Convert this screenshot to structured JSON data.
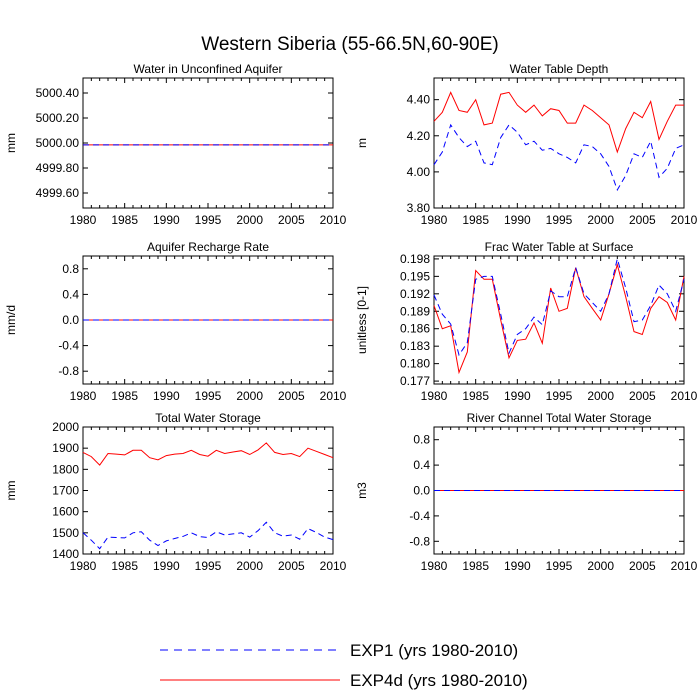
{
  "figure": {
    "title": "Western Siberia (55-66.5N,60-90E)"
  },
  "legend": {
    "items": [
      {
        "label": "EXP1 (yrs 1980-2010)",
        "color": "#0000ff",
        "dash": true
      },
      {
        "label": "EXP4d (yrs 1980-2010)",
        "color": "#ff0000",
        "dash": false
      }
    ]
  },
  "chart_data": [
    {
      "type": "line",
      "title": "Water in Unconfined Aquifer",
      "ylabel": "mm",
      "xlim": [
        1980,
        2010
      ],
      "ylim": [
        4999.48,
        5000.52
      ],
      "xticks": [
        1980,
        1985,
        1990,
        1995,
        2000,
        2005,
        2010
      ],
      "xticklabels": [
        "1980",
        "1985",
        "1990",
        "1995",
        "2000",
        "2005",
        "2010"
      ],
      "yticks": [
        4999.6,
        4999.8,
        5000.0,
        5000.2,
        5000.4
      ],
      "yticklabels": [
        "4999.60",
        "4999.80",
        "5000.00",
        "5000.20",
        "5000.40"
      ],
      "x": [
        1980,
        2010
      ],
      "series": [
        {
          "name": "EXP1",
          "values": [
            4999.985,
            4999.985
          ]
        },
        {
          "name": "EXP4d",
          "values": [
            4999.985,
            4999.985
          ]
        }
      ]
    },
    {
      "type": "line",
      "title": "Water Table Depth",
      "ylabel": "m",
      "xlim": [
        1980,
        2010
      ],
      "ylim": [
        3.8,
        4.52
      ],
      "xticks": [
        1980,
        1985,
        1990,
        1995,
        2000,
        2005,
        2010
      ],
      "xticklabels": [
        "1980",
        "1985",
        "1990",
        "1995",
        "2000",
        "2005",
        "2010"
      ],
      "yticks": [
        3.8,
        4.0,
        4.2,
        4.4
      ],
      "yticklabels": [
        "3.80",
        "4.00",
        "4.20",
        "4.40"
      ],
      "x": [
        1980,
        1981,
        1982,
        1983,
        1984,
        1985,
        1986,
        1987,
        1988,
        1989,
        1990,
        1991,
        1992,
        1993,
        1994,
        1995,
        1996,
        1997,
        1998,
        1999,
        2000,
        2001,
        2002,
        2003,
        2004,
        2005,
        2006,
        2007,
        2008,
        2009,
        2010
      ],
      "series": [
        {
          "name": "EXP1",
          "values": [
            4.04,
            4.11,
            4.26,
            4.19,
            4.14,
            4.17,
            4.05,
            4.04,
            4.19,
            4.26,
            4.22,
            4.15,
            4.17,
            4.12,
            4.13,
            4.1,
            4.08,
            4.05,
            4.15,
            4.14,
            4.1,
            4.03,
            3.9,
            3.98,
            4.1,
            4.08,
            4.17,
            3.97,
            4.02,
            4.13,
            4.15
          ]
        },
        {
          "name": "EXP4d",
          "values": [
            4.28,
            4.33,
            4.44,
            4.34,
            4.33,
            4.4,
            4.26,
            4.27,
            4.43,
            4.44,
            4.37,
            4.33,
            4.37,
            4.31,
            4.35,
            4.34,
            4.27,
            4.27,
            4.37,
            4.34,
            4.3,
            4.26,
            4.11,
            4.24,
            4.33,
            4.3,
            4.39,
            4.18,
            4.28,
            4.37,
            4.37
          ]
        }
      ]
    },
    {
      "type": "line",
      "title": "Aquifer Recharge Rate",
      "ylabel": "mm/d",
      "xlim": [
        1980,
        2010
      ],
      "ylim": [
        -1.0,
        1.0
      ],
      "xticks": [
        1980,
        1985,
        1990,
        1995,
        2000,
        2005,
        2010
      ],
      "xticklabels": [
        "1980",
        "1985",
        "1990",
        "1995",
        "2000",
        "2005",
        "2010"
      ],
      "yticks": [
        -0.8,
        -0.4,
        0.0,
        0.4,
        0.8
      ],
      "yticklabels": [
        "-0.8",
        "-0.4",
        "0.0",
        "0.4",
        "0.8"
      ],
      "x": [
        1980,
        2010
      ],
      "series": [
        {
          "name": "EXP1",
          "values": [
            0.0,
            0.0
          ]
        },
        {
          "name": "EXP4d",
          "values": [
            0.0,
            0.0
          ]
        }
      ]
    },
    {
      "type": "line",
      "title": "Frac Water Table at Surface",
      "ylabel": "unitless [0-1]",
      "xlim": [
        1980,
        2010
      ],
      "ylim": [
        0.1765,
        0.1985
      ],
      "xticks": [
        1980,
        1985,
        1990,
        1995,
        2000,
        2005,
        2010
      ],
      "xticklabels": [
        "1980",
        "1985",
        "1990",
        "1995",
        "2000",
        "2005",
        "2010"
      ],
      "yticks": [
        0.177,
        0.18,
        0.183,
        0.186,
        0.189,
        0.192,
        0.195,
        0.198
      ],
      "yticklabels": [
        "0.177",
        "0.180",
        "0.183",
        "0.186",
        "0.189",
        "0.192",
        "0.195",
        "0.198"
      ],
      "x": [
        1980,
        1981,
        1982,
        1983,
        1984,
        1985,
        1986,
        1987,
        1988,
        1989,
        1990,
        1991,
        1992,
        1993,
        1994,
        1995,
        1996,
        1997,
        1998,
        1999,
        2000,
        2001,
        2002,
        2003,
        2004,
        2005,
        2006,
        2007,
        2008,
        2009,
        2010
      ],
      "series": [
        {
          "name": "EXP1",
          "values": [
            0.1918,
            0.1885,
            0.1868,
            0.1815,
            0.1836,
            0.1945,
            0.195,
            0.195,
            0.1885,
            0.1818,
            0.185,
            0.186,
            0.188,
            0.1867,
            0.1925,
            0.1915,
            0.1915,
            0.1965,
            0.192,
            0.1905,
            0.189,
            0.192,
            0.198,
            0.193,
            0.1872,
            0.1875,
            0.19,
            0.1935,
            0.192,
            0.189,
            0.1945
          ]
        },
        {
          "name": "EXP4d",
          "values": [
            0.19,
            0.186,
            0.1865,
            0.1785,
            0.182,
            0.196,
            0.1945,
            0.1945,
            0.1875,
            0.181,
            0.184,
            0.1842,
            0.187,
            0.1835,
            0.193,
            0.189,
            0.1895,
            0.1965,
            0.1915,
            0.1895,
            0.1875,
            0.192,
            0.197,
            0.1915,
            0.1855,
            0.185,
            0.1895,
            0.1915,
            0.1905,
            0.1875,
            0.195
          ]
        }
      ]
    },
    {
      "type": "line",
      "title": "Total Water Storage",
      "ylabel": "mm",
      "xlim": [
        1980,
        2010
      ],
      "ylim": [
        1400,
        2000
      ],
      "xticks": [
        1980,
        1985,
        1990,
        1995,
        2000,
        2005,
        2010
      ],
      "xticklabels": [
        "1980",
        "1985",
        "1990",
        "1995",
        "2000",
        "2005",
        "2010"
      ],
      "yticks": [
        1400,
        1500,
        1600,
        1700,
        1800,
        1900,
        2000
      ],
      "yticklabels": [
        "1400",
        "1500",
        "1600",
        "1700",
        "1800",
        "1900",
        "2000"
      ],
      "x": [
        1980,
        1981,
        1982,
        1983,
        1984,
        1985,
        1986,
        1987,
        1988,
        1989,
        1990,
        1991,
        1992,
        1993,
        1994,
        1995,
        1996,
        1997,
        1998,
        1999,
        2000,
        2001,
        2002,
        2003,
        2004,
        2005,
        2006,
        2007,
        2008,
        2009,
        2010
      ],
      "series": [
        {
          "name": "EXP1",
          "values": [
            1500,
            1465,
            1425,
            1480,
            1478,
            1476,
            1500,
            1505,
            1465,
            1440,
            1462,
            1473,
            1483,
            1500,
            1482,
            1478,
            1505,
            1490,
            1495,
            1500,
            1480,
            1510,
            1550,
            1500,
            1484,
            1490,
            1470,
            1520,
            1502,
            1480,
            1468
          ]
        },
        {
          "name": "EXP4d",
          "values": [
            1880,
            1860,
            1820,
            1875,
            1872,
            1868,
            1890,
            1890,
            1855,
            1845,
            1865,
            1872,
            1875,
            1890,
            1870,
            1862,
            1890,
            1875,
            1882,
            1888,
            1870,
            1892,
            1925,
            1880,
            1870,
            1875,
            1860,
            1900,
            1885,
            1870,
            1855
          ]
        }
      ]
    },
    {
      "type": "line",
      "title": "River Channel Total Water Storage",
      "ylabel": "m3",
      "xlim": [
        1980,
        2010
      ],
      "ylim": [
        -1.0,
        1.0
      ],
      "xticks": [
        1980,
        1985,
        1990,
        1995,
        2000,
        2005,
        2010
      ],
      "xticklabels": [
        "1980",
        "1985",
        "1990",
        "1995",
        "2000",
        "2005",
        "2010"
      ],
      "yticks": [
        -0.8,
        -0.4,
        0.0,
        0.4,
        0.8
      ],
      "yticklabels": [
        "-0.8",
        "-0.4",
        "0.0",
        "0.4",
        "0.8"
      ],
      "x": [
        1980,
        2010
      ],
      "series": [
        {
          "name": "EXP1",
          "values": [
            0.0,
            0.0
          ]
        },
        {
          "name": "EXP4d",
          "values": [
            0.0,
            0.0
          ]
        }
      ]
    }
  ]
}
